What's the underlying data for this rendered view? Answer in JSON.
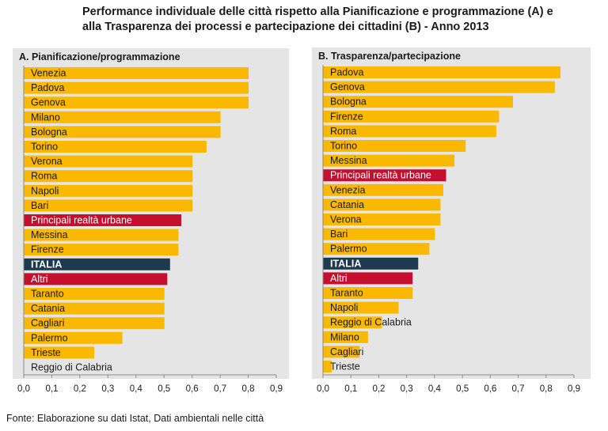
{
  "title": "Performance individuale delle città rispetto alla Pianificazione e programmazione (A) e\nalla Trasparenza dei processi e partecipazione dei cittadini (B) - Anno 2013",
  "footer": "Fonte: Elaborazione su dati Istat, Dati ambientali nelle città",
  "colors": {
    "city": "#fbb800",
    "principali": "#c4102e",
    "italia": "#1d3a4f",
    "altri": "#c4102e",
    "panel_bg": "#e5e5e5"
  },
  "chart_data": [
    {
      "type": "bar",
      "orientation": "horizontal",
      "title": "A. Pianificazione/programmazione",
      "xlim": [
        0,
        0.9
      ],
      "xticks": [
        "0,0",
        "0,1",
        "0,2",
        "0,3",
        "0,4",
        "0,5",
        "0,6",
        "0,7",
        "0,8",
        "0,9"
      ],
      "categories": [
        "Venezia",
        "Padova",
        "Genova",
        "Milano",
        "Bologna",
        "Torino",
        "Verona",
        "Roma",
        "Napoli",
        "Bari",
        "Principali realtà urbane",
        "Messina",
        "Firenze",
        "ITALIA",
        "Altri",
        "Taranto",
        "Catania",
        "Cagliari",
        "Palermo",
        "Trieste",
        "Reggio di Calabria"
      ],
      "values": [
        0.8,
        0.8,
        0.8,
        0.7,
        0.7,
        0.65,
        0.6,
        0.6,
        0.6,
        0.6,
        0.56,
        0.55,
        0.55,
        0.52,
        0.51,
        0.5,
        0.5,
        0.5,
        0.35,
        0.25,
        0.0
      ],
      "kinds": [
        "city",
        "city",
        "city",
        "city",
        "city",
        "city",
        "city",
        "city",
        "city",
        "city",
        "principali",
        "city",
        "city",
        "italia",
        "altri",
        "city",
        "city",
        "city",
        "city",
        "city",
        "city"
      ]
    },
    {
      "type": "bar",
      "orientation": "horizontal",
      "title": "B. Trasparenza/partecipazione",
      "xlim": [
        0,
        0.9
      ],
      "xticks": [
        "0,0",
        "0,1",
        "0,2",
        "0,3",
        "0,4",
        "0,5",
        "0,6",
        "0,7",
        "0,8",
        "0,9"
      ],
      "categories": [
        "Padova",
        "Genova",
        "Bologna",
        "Firenze",
        "Roma",
        "Torino",
        "Messina",
        "Principali realtà urbane",
        "Venezia",
        "Catania",
        "Verona",
        "Bari",
        "Palermo",
        "ITALIA",
        "Altri",
        "Taranto",
        "Napoli",
        "Reggio di Calabria",
        "Milano",
        "Cagliari",
        "Trieste"
      ],
      "values": [
        0.85,
        0.83,
        0.68,
        0.63,
        0.62,
        0.51,
        0.47,
        0.44,
        0.43,
        0.42,
        0.42,
        0.4,
        0.38,
        0.34,
        0.32,
        0.32,
        0.27,
        0.21,
        0.16,
        0.13,
        0.03
      ],
      "kinds": [
        "city",
        "city",
        "city",
        "city",
        "city",
        "city",
        "city",
        "principali",
        "city",
        "city",
        "city",
        "city",
        "city",
        "italia",
        "altri",
        "city",
        "city",
        "city",
        "city",
        "city",
        "city"
      ]
    }
  ]
}
